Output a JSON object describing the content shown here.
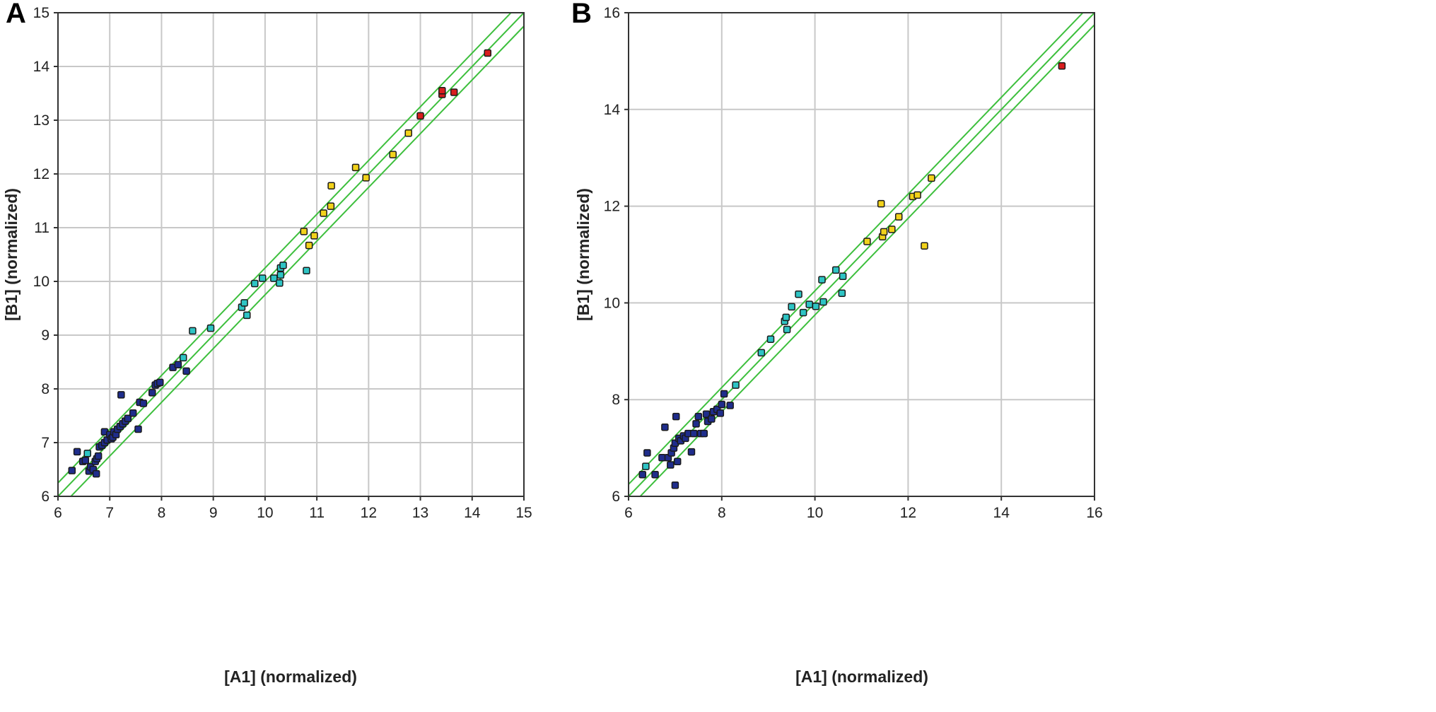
{
  "chart_data": [
    {
      "type": "scatter",
      "panel_label": "A",
      "xlabel": "[A1] (normalized)",
      "ylabel": "[B1] (normalized)",
      "xlim": [
        6,
        15
      ],
      "ylim": [
        6,
        15
      ],
      "xticks": [
        6,
        7,
        8,
        9,
        10,
        11,
        12,
        13,
        14,
        15
      ],
      "yticks": [
        6,
        7,
        8,
        9,
        10,
        11,
        12,
        13,
        14,
        15
      ],
      "grid": true,
      "reference_lines": [
        {
          "slope": 1,
          "intercept": 0.25
        },
        {
          "slope": 1,
          "intercept": 0
        },
        {
          "slope": 1,
          "intercept": -0.25
        }
      ],
      "line_color": "#3dbf3d",
      "point_colors": {
        "blue": "#1f2d8c",
        "cyan": "#2ec4c4",
        "yellow": "#f2d21b",
        "red": "#d81e1e"
      },
      "points": [
        {
          "x": 6.27,
          "y": 6.48,
          "c": "blue"
        },
        {
          "x": 6.37,
          "y": 6.83,
          "c": "blue"
        },
        {
          "x": 6.48,
          "y": 6.65,
          "c": "blue"
        },
        {
          "x": 6.53,
          "y": 6.67,
          "c": "blue"
        },
        {
          "x": 6.57,
          "y": 6.8,
          "c": "cyan"
        },
        {
          "x": 6.6,
          "y": 6.47,
          "c": "blue"
        },
        {
          "x": 6.63,
          "y": 6.55,
          "c": "blue"
        },
        {
          "x": 6.68,
          "y": 6.5,
          "c": "blue"
        },
        {
          "x": 6.72,
          "y": 6.65,
          "c": "blue"
        },
        {
          "x": 6.74,
          "y": 6.42,
          "c": "blue"
        },
        {
          "x": 6.75,
          "y": 6.7,
          "c": "blue"
        },
        {
          "x": 6.78,
          "y": 6.75,
          "c": "blue"
        },
        {
          "x": 6.8,
          "y": 6.92,
          "c": "blue"
        },
        {
          "x": 6.85,
          "y": 6.95,
          "c": "blue"
        },
        {
          "x": 6.9,
          "y": 7.0,
          "c": "blue"
        },
        {
          "x": 6.9,
          "y": 7.2,
          "c": "blue"
        },
        {
          "x": 6.95,
          "y": 7.05,
          "c": "blue"
        },
        {
          "x": 7.0,
          "y": 7.15,
          "c": "blue"
        },
        {
          "x": 7.03,
          "y": 7.07,
          "c": "blue"
        },
        {
          "x": 7.06,
          "y": 7.1,
          "c": "blue"
        },
        {
          "x": 7.08,
          "y": 7.2,
          "c": "blue"
        },
        {
          "x": 7.12,
          "y": 7.15,
          "c": "blue"
        },
        {
          "x": 7.15,
          "y": 7.25,
          "c": "blue"
        },
        {
          "x": 7.2,
          "y": 7.3,
          "c": "blue"
        },
        {
          "x": 7.22,
          "y": 7.89,
          "c": "blue"
        },
        {
          "x": 7.25,
          "y": 7.35,
          "c": "blue"
        },
        {
          "x": 7.3,
          "y": 7.4,
          "c": "blue"
        },
        {
          "x": 7.35,
          "y": 7.45,
          "c": "blue"
        },
        {
          "x": 7.45,
          "y": 7.55,
          "c": "blue"
        },
        {
          "x": 7.55,
          "y": 7.25,
          "c": "blue"
        },
        {
          "x": 7.58,
          "y": 7.75,
          "c": "blue"
        },
        {
          "x": 7.65,
          "y": 7.73,
          "c": "blue"
        },
        {
          "x": 7.82,
          "y": 7.93,
          "c": "blue"
        },
        {
          "x": 7.88,
          "y": 8.07,
          "c": "blue"
        },
        {
          "x": 7.92,
          "y": 8.1,
          "c": "blue"
        },
        {
          "x": 7.97,
          "y": 8.12,
          "c": "blue"
        },
        {
          "x": 8.22,
          "y": 8.4,
          "c": "blue"
        },
        {
          "x": 8.32,
          "y": 8.45,
          "c": "blue"
        },
        {
          "x": 8.42,
          "y": 8.58,
          "c": "cyan"
        },
        {
          "x": 8.48,
          "y": 8.33,
          "c": "blue"
        },
        {
          "x": 8.6,
          "y": 9.08,
          "c": "cyan"
        },
        {
          "x": 8.95,
          "y": 9.13,
          "c": "cyan"
        },
        {
          "x": 9.55,
          "y": 9.52,
          "c": "cyan"
        },
        {
          "x": 9.6,
          "y": 9.6,
          "c": "cyan"
        },
        {
          "x": 9.65,
          "y": 9.37,
          "c": "cyan"
        },
        {
          "x": 9.8,
          "y": 9.96,
          "c": "cyan"
        },
        {
          "x": 9.95,
          "y": 10.06,
          "c": "cyan"
        },
        {
          "x": 10.17,
          "y": 10.06,
          "c": "cyan"
        },
        {
          "x": 10.28,
          "y": 9.97,
          "c": "cyan"
        },
        {
          "x": 10.3,
          "y": 10.12,
          "c": "cyan"
        },
        {
          "x": 10.3,
          "y": 10.25,
          "c": "cyan"
        },
        {
          "x": 10.35,
          "y": 10.3,
          "c": "cyan"
        },
        {
          "x": 10.75,
          "y": 10.93,
          "c": "yellow"
        },
        {
          "x": 10.8,
          "y": 10.2,
          "c": "cyan"
        },
        {
          "x": 10.85,
          "y": 10.67,
          "c": "yellow"
        },
        {
          "x": 10.95,
          "y": 10.85,
          "c": "yellow"
        },
        {
          "x": 11.13,
          "y": 11.27,
          "c": "yellow"
        },
        {
          "x": 11.27,
          "y": 11.4,
          "c": "yellow"
        },
        {
          "x": 11.28,
          "y": 11.78,
          "c": "yellow"
        },
        {
          "x": 11.75,
          "y": 12.12,
          "c": "yellow"
        },
        {
          "x": 11.95,
          "y": 11.93,
          "c": "yellow"
        },
        {
          "x": 12.47,
          "y": 12.36,
          "c": "yellow"
        },
        {
          "x": 12.77,
          "y": 12.76,
          "c": "yellow"
        },
        {
          "x": 13.0,
          "y": 13.08,
          "c": "red"
        },
        {
          "x": 13.42,
          "y": 13.48,
          "c": "red"
        },
        {
          "x": 13.42,
          "y": 13.55,
          "c": "red"
        },
        {
          "x": 13.65,
          "y": 13.52,
          "c": "red"
        },
        {
          "x": 14.3,
          "y": 14.25,
          "c": "red"
        }
      ]
    },
    {
      "type": "scatter",
      "panel_label": "B",
      "xlabel": "[A1] (normalized)",
      "ylabel": "[B1] (normalized)",
      "xlim": [
        6,
        16
      ],
      "ylim": [
        6,
        16
      ],
      "xticks": [
        6,
        8,
        10,
        12,
        14,
        16
      ],
      "yticks": [
        6,
        8,
        10,
        12,
        14,
        16
      ],
      "grid": true,
      "reference_lines": [
        {
          "slope": 1,
          "intercept": 0.25
        },
        {
          "slope": 1,
          "intercept": 0
        },
        {
          "slope": 1,
          "intercept": -0.25
        }
      ],
      "line_color": "#3dbf3d",
      "point_colors": {
        "blue": "#1f2d8c",
        "cyan": "#2ec4c4",
        "yellow": "#f2d21b",
        "red": "#d81e1e"
      },
      "points": [
        {
          "x": 6.3,
          "y": 6.45,
          "c": "blue"
        },
        {
          "x": 6.37,
          "y": 6.62,
          "c": "cyan"
        },
        {
          "x": 6.4,
          "y": 6.9,
          "c": "blue"
        },
        {
          "x": 6.57,
          "y": 6.45,
          "c": "blue"
        },
        {
          "x": 6.72,
          "y": 6.8,
          "c": "blue"
        },
        {
          "x": 6.78,
          "y": 7.43,
          "c": "blue"
        },
        {
          "x": 6.85,
          "y": 6.8,
          "c": "blue"
        },
        {
          "x": 6.9,
          "y": 6.65,
          "c": "blue"
        },
        {
          "x": 6.92,
          "y": 6.9,
          "c": "blue"
        },
        {
          "x": 6.97,
          "y": 7.0,
          "c": "blue"
        },
        {
          "x": 7.0,
          "y": 6.23,
          "c": "blue"
        },
        {
          "x": 7.0,
          "y": 7.1,
          "c": "blue"
        },
        {
          "x": 7.02,
          "y": 7.65,
          "c": "blue"
        },
        {
          "x": 7.05,
          "y": 6.72,
          "c": "blue"
        },
        {
          "x": 7.08,
          "y": 7.2,
          "c": "blue"
        },
        {
          "x": 7.12,
          "y": 7.15,
          "c": "blue"
        },
        {
          "x": 7.18,
          "y": 7.25,
          "c": "blue"
        },
        {
          "x": 7.22,
          "y": 7.2,
          "c": "blue"
        },
        {
          "x": 7.28,
          "y": 7.3,
          "c": "blue"
        },
        {
          "x": 7.35,
          "y": 6.92,
          "c": "blue"
        },
        {
          "x": 7.4,
          "y": 7.3,
          "c": "blue"
        },
        {
          "x": 7.45,
          "y": 7.5,
          "c": "blue"
        },
        {
          "x": 7.5,
          "y": 7.65,
          "c": "blue"
        },
        {
          "x": 7.55,
          "y": 7.3,
          "c": "blue"
        },
        {
          "x": 7.62,
          "y": 7.3,
          "c": "blue"
        },
        {
          "x": 7.67,
          "y": 7.7,
          "c": "blue"
        },
        {
          "x": 7.7,
          "y": 7.55,
          "c": "blue"
        },
        {
          "x": 7.78,
          "y": 7.6,
          "c": "blue"
        },
        {
          "x": 7.82,
          "y": 7.75,
          "c": "blue"
        },
        {
          "x": 7.9,
          "y": 7.8,
          "c": "blue"
        },
        {
          "x": 7.97,
          "y": 7.72,
          "c": "blue"
        },
        {
          "x": 8.0,
          "y": 7.9,
          "c": "blue"
        },
        {
          "x": 8.05,
          "y": 8.12,
          "c": "blue"
        },
        {
          "x": 8.18,
          "y": 7.88,
          "c": "blue"
        },
        {
          "x": 8.3,
          "y": 8.3,
          "c": "cyan"
        },
        {
          "x": 8.85,
          "y": 8.97,
          "c": "cyan"
        },
        {
          "x": 9.05,
          "y": 9.25,
          "c": "cyan"
        },
        {
          "x": 9.35,
          "y": 9.62,
          "c": "cyan"
        },
        {
          "x": 9.38,
          "y": 9.7,
          "c": "cyan"
        },
        {
          "x": 9.4,
          "y": 9.45,
          "c": "cyan"
        },
        {
          "x": 9.5,
          "y": 9.92,
          "c": "cyan"
        },
        {
          "x": 9.65,
          "y": 10.18,
          "c": "cyan"
        },
        {
          "x": 9.75,
          "y": 9.8,
          "c": "cyan"
        },
        {
          "x": 9.88,
          "y": 9.97,
          "c": "cyan"
        },
        {
          "x": 10.02,
          "y": 9.93,
          "c": "cyan"
        },
        {
          "x": 10.15,
          "y": 10.48,
          "c": "cyan"
        },
        {
          "x": 10.18,
          "y": 10.02,
          "c": "cyan"
        },
        {
          "x": 10.45,
          "y": 10.68,
          "c": "cyan"
        },
        {
          "x": 10.58,
          "y": 10.2,
          "c": "cyan"
        },
        {
          "x": 10.6,
          "y": 10.55,
          "c": "cyan"
        },
        {
          "x": 11.12,
          "y": 11.27,
          "c": "yellow"
        },
        {
          "x": 11.42,
          "y": 12.05,
          "c": "yellow"
        },
        {
          "x": 11.45,
          "y": 11.37,
          "c": "yellow"
        },
        {
          "x": 11.48,
          "y": 11.47,
          "c": "yellow"
        },
        {
          "x": 11.65,
          "y": 11.52,
          "c": "yellow"
        },
        {
          "x": 11.8,
          "y": 11.78,
          "c": "yellow"
        },
        {
          "x": 12.1,
          "y": 12.2,
          "c": "yellow"
        },
        {
          "x": 12.2,
          "y": 12.23,
          "c": "yellow"
        },
        {
          "x": 12.35,
          "y": 11.18,
          "c": "yellow"
        },
        {
          "x": 12.5,
          "y": 12.58,
          "c": "yellow"
        },
        {
          "x": 15.3,
          "y": 14.9,
          "c": "red"
        }
      ]
    }
  ]
}
